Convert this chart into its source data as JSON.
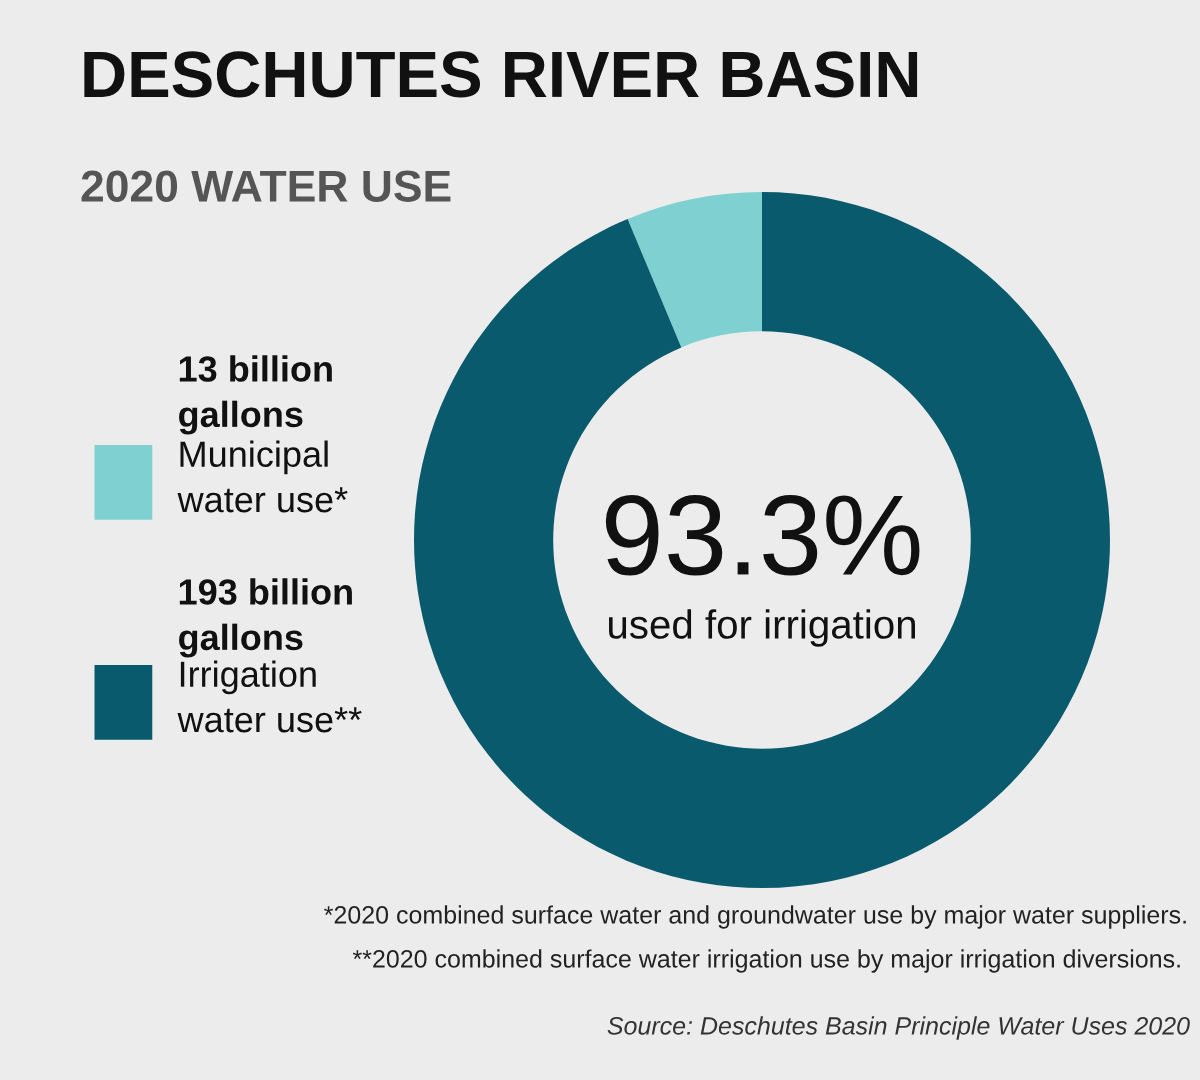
{
  "chart_data": {
    "type": "donut",
    "title": "DESCHUTES RIVER BASIN",
    "subtitle": "2020 WATER USE",
    "categories": [
      "Municipal water use*",
      "Irrigation water use**"
    ],
    "values": [
      13,
      193
    ],
    "value_labels": [
      "13 billion gallons",
      "193 billion gallons"
    ],
    "colors": [
      "#7fd1d1",
      "#0a5a6e"
    ],
    "legend": "left",
    "annotations": [
      "93.3%",
      "used for irrigation",
      "*2020 combined surface water and groundwater use by major water suppliers.",
      "**2020 combined surface water irrigation use by major irrigation diversions.",
      "Source: Deschutes Basin Principle Water Uses 2020"
    ]
  }
}
